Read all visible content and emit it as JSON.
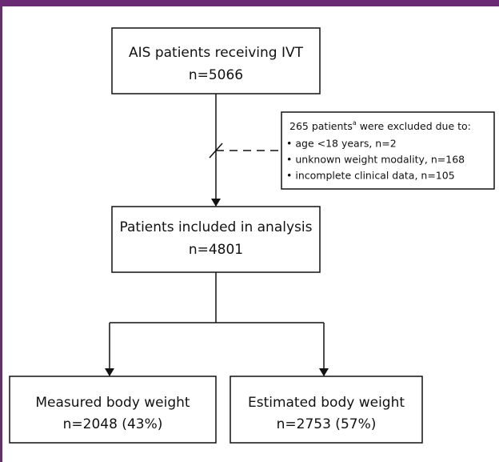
{
  "nodes": [
    {
      "label": "AIS patients receiving IVT",
      "count": "n=5066"
    },
    {
      "label": "Patients included in analysis",
      "count": "n=4801"
    },
    {
      "label": "Measured body weight",
      "count": "n=2048 (43%)"
    },
    {
      "label": "Estimated body weight",
      "count": "n=2753 (57%)"
    }
  ],
  "exclusion": {
    "heading": "265 patients",
    "footnote_mark": "a",
    "heading_rest": " were excluded due to:",
    "items": [
      "• age <18 years, n=2",
      "• unknown weight modality, n=168",
      "• incomplete clinical data, n=105"
    ]
  }
}
